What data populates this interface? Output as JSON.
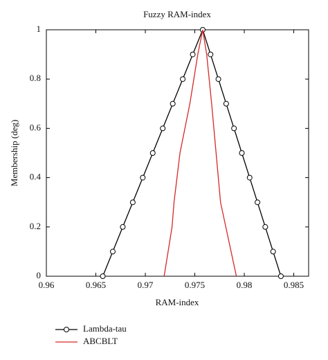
{
  "chart_data": {
    "type": "line",
    "title": "Fuzzy RAM-index",
    "xlabel": "RAM-index",
    "ylabel": "Membership (deg)",
    "xlim": [
      0.96,
      0.9865
    ],
    "xticks": [
      0.96,
      0.965,
      0.97,
      0.975,
      0.98,
      0.985
    ],
    "ylim": [
      0,
      1
    ],
    "yticks": [
      0,
      0.2,
      0.4,
      0.6,
      0.8,
      1
    ],
    "series": [
      {
        "name": "Lambda-tau",
        "color": "#000000",
        "marker": "circle",
        "x": [
          0.9657,
          0.96671,
          0.96772,
          0.96873,
          0.96974,
          0.97075,
          0.97176,
          0.97277,
          0.97378,
          0.97479,
          0.9758,
          0.97659,
          0.97738,
          0.97817,
          0.97896,
          0.97975,
          0.98054,
          0.98133,
          0.98212,
          0.98291,
          0.9837
        ],
        "values": [
          0,
          0.1,
          0.2,
          0.3,
          0.4,
          0.5,
          0.6,
          0.7,
          0.8,
          0.9,
          1,
          0.9,
          0.8,
          0.7,
          0.6,
          0.5,
          0.4,
          0.3,
          0.2,
          0.1,
          0
        ]
      },
      {
        "name": "ABCBLT",
        "color": "#d62728",
        "x": [
          0.9719,
          0.9727,
          0.9729,
          0.9735,
          0.9745,
          0.9753,
          0.9758,
          0.9762,
          0.9767,
          0.9776,
          0.9792
        ],
        "values": [
          0,
          0.2,
          0.3,
          0.5,
          0.7,
          0.9,
          1,
          0.9,
          0.7,
          0.3,
          0
        ]
      }
    ]
  }
}
